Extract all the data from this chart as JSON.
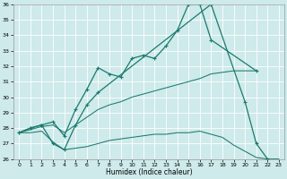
{
  "xlabel": "Humidex (Indice chaleur)",
  "xlim": [
    -0.5,
    23.5
  ],
  "ylim": [
    26,
    36
  ],
  "yticks": [
    26,
    27,
    28,
    29,
    30,
    31,
    32,
    33,
    34,
    35,
    36
  ],
  "xticks": [
    0,
    1,
    2,
    3,
    4,
    5,
    6,
    7,
    8,
    9,
    10,
    11,
    12,
    13,
    14,
    15,
    16,
    17,
    18,
    19,
    20,
    21,
    22,
    23
  ],
  "background_color": "#ceeaea",
  "grid_color": "#ffffff",
  "line_color": "#1a7a6e",
  "line1_x": [
    0,
    1,
    2,
    3,
    4,
    5,
    6,
    7,
    8,
    9,
    10,
    11,
    12,
    13,
    14,
    15,
    16,
    17,
    21
  ],
  "line1_y": [
    27.7,
    28.0,
    28.2,
    28.4,
    27.5,
    29.2,
    30.5,
    31.9,
    31.5,
    31.3,
    32.5,
    32.7,
    32.5,
    33.3,
    34.3,
    36.0,
    36.0,
    33.7,
    31.7
  ],
  "line2_x": [
    0,
    1,
    2,
    3,
    4,
    5,
    6,
    7,
    17,
    20,
    21,
    22
  ],
  "line2_y": [
    27.7,
    28.0,
    28.2,
    27.0,
    26.6,
    28.2,
    29.5,
    30.3,
    36.0,
    29.7,
    27.0,
    26.0
  ],
  "line3_x": [
    0,
    1,
    2,
    3,
    4,
    5,
    6,
    7,
    8,
    9,
    10,
    11,
    12,
    13,
    14,
    15,
    16,
    17,
    18,
    19,
    20,
    21
  ],
  "line3_y": [
    27.7,
    27.9,
    28.1,
    28.2,
    27.7,
    28.2,
    28.7,
    29.2,
    29.5,
    29.7,
    30.0,
    30.2,
    30.4,
    30.6,
    30.8,
    31.0,
    31.2,
    31.5,
    31.6,
    31.7,
    31.7,
    31.7
  ],
  "line4_x": [
    0,
    1,
    2,
    3,
    4,
    5,
    6,
    7,
    8,
    9,
    10,
    11,
    12,
    13,
    14,
    15,
    16,
    17,
    18,
    19,
    20,
    21,
    22,
    23
  ],
  "line4_y": [
    27.7,
    27.7,
    27.8,
    27.1,
    26.6,
    26.7,
    26.8,
    27.0,
    27.2,
    27.3,
    27.4,
    27.5,
    27.6,
    27.6,
    27.7,
    27.7,
    27.8,
    27.6,
    27.4,
    26.9,
    26.5,
    26.1,
    26.0,
    26.0
  ]
}
